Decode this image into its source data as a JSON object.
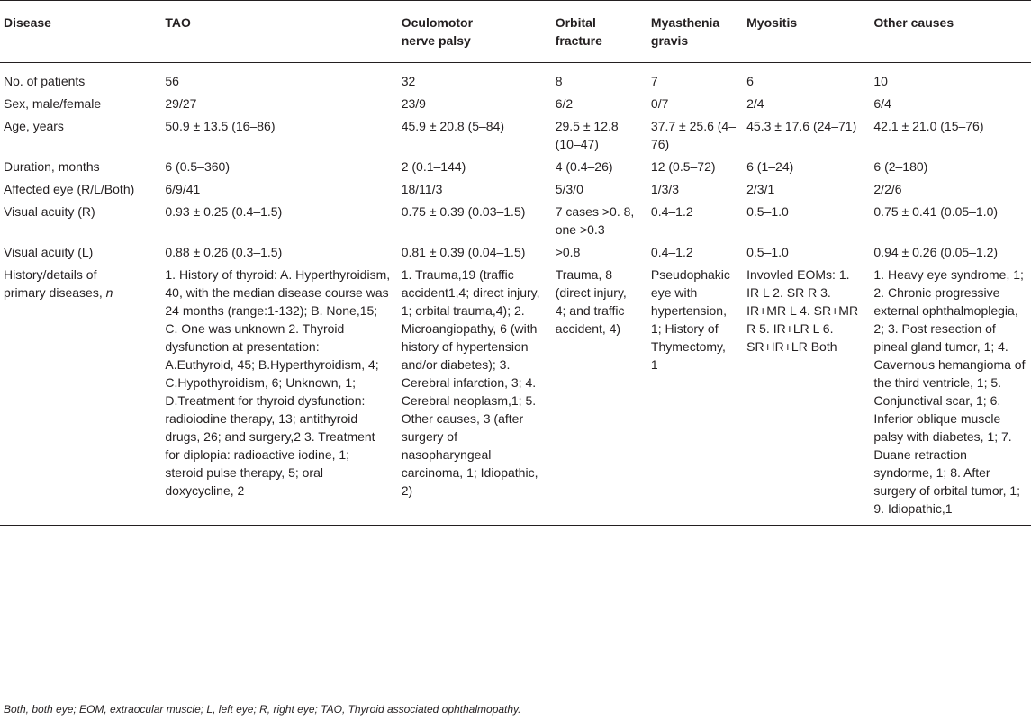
{
  "table": {
    "headers": [
      "Disease",
      "TAO",
      "Oculomotor\nnerve palsy",
      "Orbital\nfracture",
      "Myasthenia\ngravis",
      "Myositis",
      "Other causes"
    ],
    "rows": [
      {
        "label": "No. of patients",
        "cells": [
          "56",
          "32",
          "8",
          "7",
          "6",
          "10"
        ]
      },
      {
        "label": "Sex, male/female",
        "cells": [
          "29/27",
          "23/9",
          "6/2",
          "0/7",
          "2/4",
          "6/4"
        ]
      },
      {
        "label": "Age, years",
        "cells": [
          "50.9 ± 13.5 (16–86)",
          "45.9 ± 20.8\n(5–84)",
          "29.5 ± 12.8\n(10–47)",
          "37.7 ± 25.6\n(4–76)",
          "45.3 ± 17.6\n(24–71)",
          "42.1 ± 21.0 (15–76)"
        ]
      },
      {
        "label": "Duration, months",
        "cells": [
          "6 (0.5–360)",
          "2 (0.1–144)",
          "4 (0.4–26)",
          "12 (0.5–72)",
          "6 (1–24)",
          "6 (2–180)"
        ]
      },
      {
        "label": "Affected eye\n(R/L/Both)",
        "cells": [
          "6/9/41",
          "18/11/3",
          "5/3/0",
          "1/3/3",
          "2/3/1",
          "2/2/6"
        ]
      },
      {
        "label": "Visual acuity (R)",
        "cells": [
          "0.93 ± 0.25 (0.4–1.5)",
          "0.75 ± 0.39\n(0.03–1.5)",
          "7 cases >0. 8,\none >0.3",
          "0.4–1.2",
          "0.5–1.0",
          "0.75 ± 0.41 (0.05–1.0)"
        ]
      },
      {
        "label": "Visual acuity (L)",
        "cells": [
          "0.88 ± 0.26 (0.3–1.5)",
          "0.81 ± 0.39\n(0.04–1.5)",
          ">0.8",
          "0.4–1.2",
          "0.5–1.0",
          "0.94 ± 0.26 (0.05–1.2)"
        ]
      },
      {
        "label": "History/details of\nprimary diseases,",
        "label_suffix": "n",
        "cells": [
          "1. History of thyroid:\nA. Hyperthyroidism, 40, with\nthe median disease course\nwas 24 months (range:1-132);\nB. None,15;\nC. One was unknown\n2. Thyroid dysfunction\nat presentation:\nA.Euthyroid, 45;\nB.Hyperthyroidism, 4;\nC.Hypothyroidism, 6;\nUnknown, 1;\nD.Treatment for thyroid\ndysfunction: radioiodine\ntherapy, 13; antithyroid drugs,\n26; and surgery,2\n3. Treatment for diplopia:\nradioactive iodine, 1; steroid\npulse therapy, 5; oral\ndoxycycline, 2",
          "1. Trauma,19\n(traffic\naccident1,4;\ndirect injury, 1;\norbital trauma,4);\n2. Microangiopathy,\n6 (with history of\nhypertension\nand/or diabetes);\n3. Cerebral\ninfarction, 3;\n4. Cerebral\nneoplasm,1;\n5. Other causes,\n3 (after surgery of\nnasopharyngeal\ncarcinoma, 1;\nIdiopathic, 2)",
          "Trauma, 8\n(direct injury, 4;\nand traffic\naccident, 4)",
          "Pseudophakic\neye with\nhypertension,\n1;\nHistory of\nThymectomy,\n1",
          "Invovled EOMs:\n1. IR L\n2. SR R\n3. IR+MR L\n4. SR+MR R\n5. IR+LR L\n6. SR+IR+LR\nBoth",
          "1. Heavy eye syndrome,\n1;\n2. Chronic progressive\nexternal\nophthalmoplegia, 2;\n3. Post resection\nof pineal gland tumor, 1;\n4. Cavernous\nhemangioma of the third\nventricle, 1;\n5. Conjunctival scar, 1;\n6. Inferior oblique\nmuscle palsy with\ndiabetes, 1;\n7. Duane retraction\nsyndorme, 1;\n8. After surgery of orbital\ntumor, 1;\n9. Idiopathic,1"
        ]
      }
    ]
  },
  "footnote": "Both, both eye; EOM, extraocular muscle; L, left eye; R, right eye; TAO, Thyroid associated ophthalmopathy."
}
